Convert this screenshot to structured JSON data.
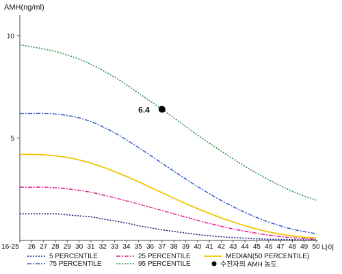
{
  "chart_data": {
    "type": "line",
    "ylabel": "AMH(ng/ml)",
    "xlabel": "나이",
    "ylim": [
      0,
      11
    ],
    "yticks": [
      5,
      10
    ],
    "ytick_labels": [
      "5",
      "10"
    ],
    "categories": [
      "16-25",
      "26",
      "27",
      "28",
      "29",
      "30",
      "31",
      "32",
      "33",
      "34",
      "35",
      "36",
      "37",
      "38",
      "39",
      "40",
      "41",
      "42",
      "43",
      "44",
      "45",
      "46",
      "47",
      "48",
      "49",
      "50"
    ],
    "series": [
      {
        "name": "5 PERCENTILE",
        "color": "#1a1a80",
        "dash": "dotted",
        "values": [
          1.3,
          1.3,
          1.3,
          1.3,
          1.25,
          1.2,
          1.15,
          1.05,
          0.95,
          0.85,
          0.72,
          0.62,
          0.52,
          0.44,
          0.36,
          0.29,
          0.23,
          0.18,
          0.14,
          0.11,
          0.08,
          0.06,
          0.05,
          0.04,
          0.03,
          0.02
        ]
      },
      {
        "name": "25 PERCENTILE",
        "color": "#e0198a",
        "dash": "dashdot",
        "values": [
          2.6,
          2.6,
          2.6,
          2.57,
          2.52,
          2.45,
          2.35,
          2.22,
          2.08,
          1.93,
          1.78,
          1.62,
          1.46,
          1.3,
          1.14,
          0.98,
          0.83,
          0.69,
          0.56,
          0.45,
          0.35,
          0.26,
          0.19,
          0.13,
          0.09,
          0.06
        ]
      },
      {
        "name": "MEDIAN(50 PERCENTILE)",
        "color": "#f2c200",
        "dash": "solid",
        "values": [
          4.2,
          4.2,
          4.18,
          4.13,
          4.05,
          3.93,
          3.77,
          3.58,
          3.36,
          3.12,
          2.87,
          2.6,
          2.33,
          2.06,
          1.8,
          1.55,
          1.32,
          1.1,
          0.9,
          0.72,
          0.56,
          0.42,
          0.31,
          0.22,
          0.16,
          0.12
        ]
      },
      {
        "name": "75 PERCENTILE",
        "color": "#2e5bc7",
        "dash": "dashdot",
        "values": [
          6.2,
          6.2,
          6.2,
          6.17,
          6.1,
          5.98,
          5.8,
          5.55,
          5.25,
          4.91,
          4.54,
          4.16,
          3.77,
          3.38,
          3.0,
          2.63,
          2.28,
          1.95,
          1.65,
          1.37,
          1.12,
          0.9,
          0.71,
          0.55,
          0.43,
          0.33
        ]
      },
      {
        "name": "95 PERCENTILE",
        "color": "#2e8b45",
        "dash": "dotted",
        "values": [
          9.55,
          9.45,
          9.35,
          9.22,
          9.05,
          8.85,
          8.6,
          8.3,
          7.97,
          7.6,
          7.2,
          6.8,
          6.4,
          5.98,
          5.56,
          5.15,
          4.75,
          4.36,
          3.98,
          3.62,
          3.28,
          2.96,
          2.67,
          2.4,
          2.17,
          1.97
        ]
      }
    ],
    "marker": {
      "label": "수진자의 AMH 농도",
      "x": "37",
      "y": 6.4,
      "text": "6.4",
      "color": "#000000"
    },
    "legend_placement": "bottom",
    "grid": false
  }
}
